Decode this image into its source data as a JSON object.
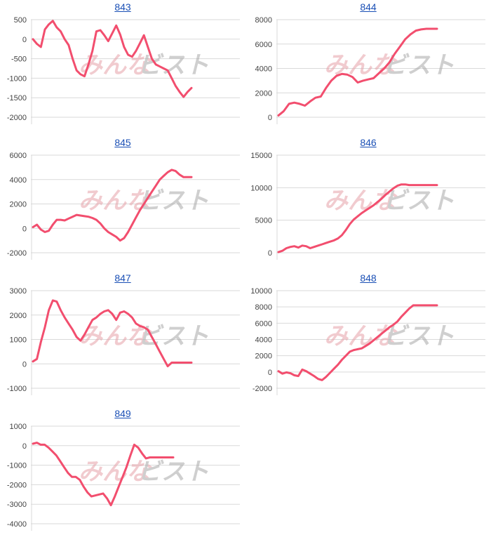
{
  "watermark": {
    "left": "みんな",
    "right": "ビスト"
  },
  "line_color": "#f24e6e",
  "chart_data": [
    {
      "type": "line",
      "title": "843",
      "yticks": [
        500,
        0,
        -500,
        -1000,
        -1500,
        -2000
      ],
      "ylim": [
        -2000,
        500
      ],
      "x": [
        0,
        1,
        2,
        3,
        4,
        5,
        6,
        7,
        8,
        9,
        10,
        11,
        12,
        13,
        14,
        15,
        16,
        17,
        18,
        19,
        20,
        21,
        22,
        23,
        24,
        25,
        26,
        27,
        28,
        29,
        30,
        31,
        32,
        33,
        34,
        35,
        36,
        37,
        38,
        39,
        40
      ],
      "values": [
        0,
        -120,
        -200,
        250,
        380,
        470,
        300,
        200,
        0,
        -150,
        -500,
        -800,
        -900,
        -950,
        -650,
        -300,
        200,
        230,
        100,
        -50,
        150,
        350,
        120,
        -200,
        -400,
        -450,
        -300,
        -100,
        100,
        -200,
        -500,
        -650,
        -700,
        -750,
        -800,
        -1000,
        -1200,
        -1350,
        -1480,
        -1350,
        -1250
      ]
    },
    {
      "type": "line",
      "title": "844",
      "yticks": [
        8000,
        6000,
        4000,
        2000,
        0
      ],
      "ylim": [
        0,
        8000
      ],
      "x": [
        0,
        1,
        2,
        3,
        4,
        5,
        6,
        7,
        8,
        9,
        10,
        11,
        12,
        13,
        14,
        15,
        16,
        17,
        18,
        19,
        20,
        21,
        22,
        23,
        24,
        25,
        26,
        27,
        28,
        29,
        30
      ],
      "values": [
        150,
        500,
        1100,
        1200,
        1100,
        950,
        1300,
        1600,
        1700,
        2400,
        3000,
        3400,
        3550,
        3500,
        3300,
        2850,
        3000,
        3100,
        3200,
        3600,
        4000,
        4500,
        5200,
        5800,
        6400,
        6800,
        7100,
        7200,
        7250,
        7250,
        7250
      ]
    },
    {
      "type": "line",
      "title": "845",
      "yticks": [
        6000,
        4000,
        2000,
        0,
        -2000
      ],
      "ylim": [
        -2000,
        6000
      ],
      "x": [
        0,
        1,
        2,
        3,
        4,
        5,
        6,
        7,
        8,
        9,
        10,
        11,
        12,
        13,
        14,
        15,
        16,
        17,
        18,
        19,
        20,
        21,
        22,
        23,
        24,
        25,
        26,
        27,
        28,
        29,
        30,
        31,
        32,
        33,
        34,
        35,
        36,
        37,
        38,
        39,
        40
      ],
      "values": [
        100,
        300,
        -100,
        -300,
        -200,
        300,
        700,
        700,
        650,
        800,
        950,
        1100,
        1050,
        1000,
        950,
        850,
        700,
        400,
        0,
        -300,
        -500,
        -700,
        -1000,
        -800,
        -300,
        300,
        900,
        1500,
        2000,
        2500,
        3000,
        3500,
        4000,
        4300,
        4600,
        4800,
        4700,
        4400,
        4200,
        4200,
        4200
      ]
    },
    {
      "type": "line",
      "title": "846",
      "yticks": [
        15000,
        10000,
        5000,
        0
      ],
      "ylim": [
        0,
        15000
      ],
      "x": [
        0,
        1,
        2,
        3,
        4,
        5,
        6,
        7,
        8,
        9,
        10,
        11,
        12,
        13,
        14,
        15,
        16,
        17,
        18,
        19,
        20,
        21,
        22,
        23,
        24,
        25,
        26,
        27,
        28,
        29,
        30,
        31,
        32,
        33,
        34,
        35,
        36,
        37,
        38,
        39,
        40
      ],
      "values": [
        100,
        300,
        700,
        900,
        1000,
        800,
        1100,
        1000,
        700,
        900,
        1100,
        1300,
        1500,
        1700,
        1900,
        2200,
        2700,
        3500,
        4400,
        5100,
        5600,
        6100,
        6500,
        6900,
        7300,
        7800,
        8300,
        8900,
        9400,
        9900,
        10300,
        10500,
        10500,
        10400,
        10400,
        10400,
        10400,
        10400,
        10400,
        10400,
        10400
      ]
    },
    {
      "type": "line",
      "title": "847",
      "yticks": [
        3000,
        2000,
        1000,
        0,
        -1000
      ],
      "ylim": [
        -1000,
        3000
      ],
      "x": [
        0,
        1,
        2,
        3,
        4,
        5,
        6,
        7,
        8,
        9,
        10,
        11,
        12,
        13,
        14,
        15,
        16,
        17,
        18,
        19,
        20,
        21,
        22,
        23,
        24,
        25,
        26,
        27,
        28,
        29,
        30,
        31,
        32,
        33,
        34,
        35,
        36,
        37,
        38,
        39,
        40
      ],
      "values": [
        100,
        200,
        900,
        1500,
        2200,
        2600,
        2550,
        2200,
        1900,
        1650,
        1400,
        1100,
        950,
        1200,
        1500,
        1800,
        1900,
        2050,
        2150,
        2200,
        2050,
        1800,
        2100,
        2150,
        2050,
        1900,
        1650,
        1550,
        1500,
        1400,
        1100,
        800,
        500,
        200,
        -100,
        50,
        50,
        50,
        50,
        50,
        50
      ]
    },
    {
      "type": "line",
      "title": "848",
      "yticks": [
        10000,
        8000,
        6000,
        4000,
        2000,
        0,
        -2000
      ],
      "ylim": [
        -2000,
        10000
      ],
      "x": [
        0,
        1,
        2,
        3,
        4,
        5,
        6,
        7,
        8,
        9,
        10,
        11,
        12,
        13,
        14,
        15,
        16,
        17,
        18,
        19,
        20,
        21,
        22,
        23,
        24,
        25,
        26,
        27,
        28,
        29,
        30,
        31,
        32,
        33,
        34,
        35,
        36,
        37,
        38,
        39,
        40
      ],
      "values": [
        100,
        -200,
        -50,
        -150,
        -400,
        -500,
        300,
        100,
        -200,
        -500,
        -850,
        -1000,
        -600,
        -100,
        400,
        900,
        1500,
        2000,
        2500,
        2700,
        2800,
        2900,
        3200,
        3500,
        3900,
        4300,
        4700,
        5100,
        5500,
        5800,
        6200,
        6800,
        7300,
        7800,
        8200,
        8200,
        8200,
        8200,
        8200,
        8200,
        8200
      ]
    },
    {
      "type": "line",
      "title": "849",
      "yticks": [
        1000,
        0,
        -1000,
        -2000,
        -3000,
        -4000
      ],
      "ylim": [
        -4000,
        1000
      ],
      "x": [
        0,
        1,
        2,
        3,
        4,
        5,
        6,
        7,
        8,
        9,
        10,
        11,
        12,
        13,
        14,
        15,
        16,
        17,
        18,
        19,
        20,
        21,
        22,
        23,
        24,
        25,
        26,
        27,
        28,
        29,
        30,
        31,
        32,
        33,
        34,
        35,
        36
      ],
      "values": [
        100,
        150,
        50,
        50,
        -100,
        -300,
        -500,
        -800,
        -1100,
        -1400,
        -1600,
        -1600,
        -1750,
        -2100,
        -2400,
        -2600,
        -2550,
        -2500,
        -2450,
        -2700,
        -3050,
        -2600,
        -2100,
        -1600,
        -1100,
        -500,
        50,
        -100,
        -400,
        -650,
        -600,
        -600,
        -600,
        -600,
        -600,
        -600,
        -600
      ]
    }
  ]
}
